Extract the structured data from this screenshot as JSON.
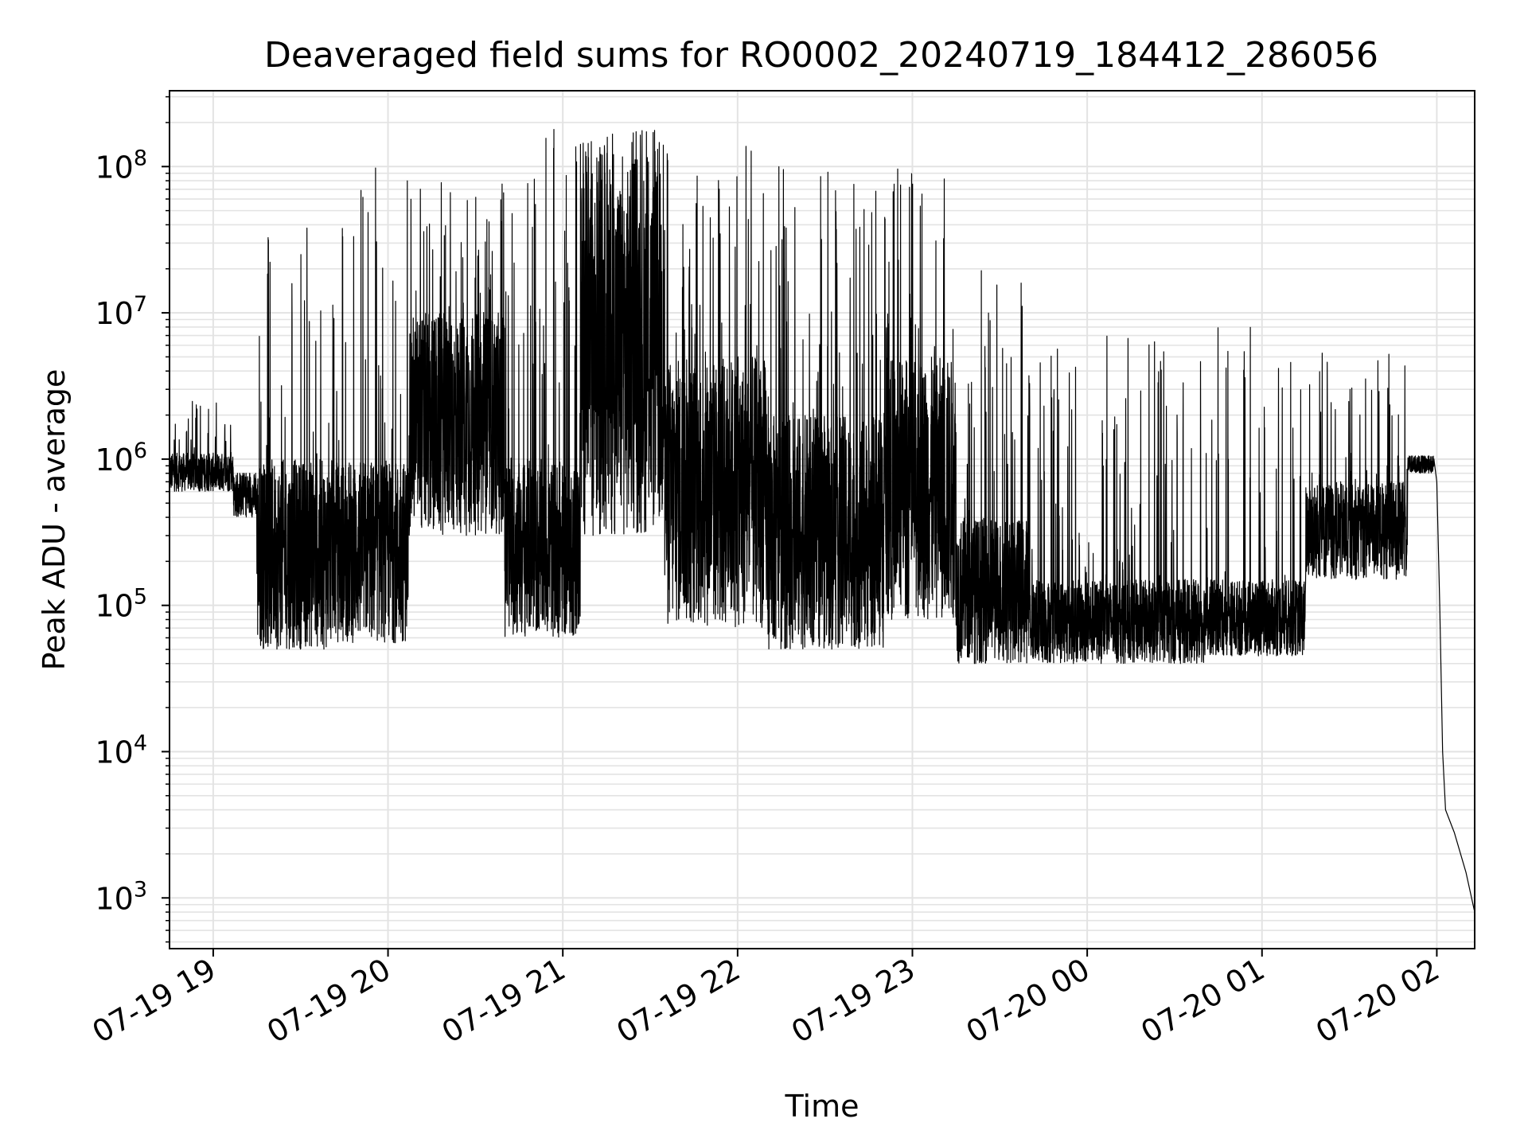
{
  "chart_data": {
    "type": "line",
    "title": "Deaveraged field sums for RO0002_20240719_184412_286056",
    "xlabel": "Time",
    "ylabel": "Peak ADU - average",
    "yscale": "log",
    "ylim": [
      450,
      330000000
    ],
    "xlim": [
      "2024-07-19 18:45",
      "2024-07-20 02:13"
    ],
    "grid": true,
    "line_color": "#000000",
    "x_ticks": [
      {
        "t": "2024-07-19 19:00",
        "label": "07-19 19"
      },
      {
        "t": "2024-07-19 20:00",
        "label": "07-19 20"
      },
      {
        "t": "2024-07-19 21:00",
        "label": "07-19 21"
      },
      {
        "t": "2024-07-19 22:00",
        "label": "07-19 22"
      },
      {
        "t": "2024-07-19 23:00",
        "label": "07-19 23"
      },
      {
        "t": "2024-07-20 00:00",
        "label": "07-20 00"
      },
      {
        "t": "2024-07-20 01:00",
        "label": "07-20 01"
      },
      {
        "t": "2024-07-20 02:00",
        "label": "07-20 02"
      }
    ],
    "y_ticks": [
      {
        "value": 1000,
        "base": "10",
        "exp": "3"
      },
      {
        "value": 10000,
        "base": "10",
        "exp": "4"
      },
      {
        "value": 100000,
        "base": "10",
        "exp": "5"
      },
      {
        "value": 1000000,
        "base": "10",
        "exp": "6"
      },
      {
        "value": 10000000,
        "base": "10",
        "exp": "7"
      },
      {
        "value": 100000000,
        "base": "10",
        "exp": "8"
      }
    ],
    "series": [
      {
        "segments": [
          {
            "start": "2024-07-19 18:45",
            "end": "2024-07-19 19:07",
            "lo": 600000,
            "hi": 1100000,
            "spike_max": 2500000
          },
          {
            "start": "2024-07-19 19:07",
            "end": "2024-07-19 19:15",
            "lo": 400000,
            "hi": 800000,
            "spike_max": 800000
          },
          {
            "start": "2024-07-19 19:15",
            "end": "2024-07-19 19:40",
            "lo": 50000,
            "hi": 1000000,
            "spike_max": 40000000
          },
          {
            "start": "2024-07-19 19:40",
            "end": "2024-07-19 20:07",
            "lo": 55000,
            "hi": 1000000,
            "spike_max": 120000000
          },
          {
            "start": "2024-07-19 20:07",
            "end": "2024-07-19 20:40",
            "lo": 300000,
            "hi": 10000000,
            "spike_max": 80000000
          },
          {
            "start": "2024-07-19 20:40",
            "end": "2024-07-19 21:06",
            "lo": 60000,
            "hi": 1000000,
            "spike_max": 180000000
          },
          {
            "start": "2024-07-19 21:06",
            "end": "2024-07-19 21:35",
            "lo": 300000,
            "hi": 100000000,
            "spike_max": 180000000
          },
          {
            "start": "2024-07-19 21:35",
            "end": "2024-07-19 22:10",
            "lo": 70000,
            "hi": 5000000,
            "spike_max": 160000000
          },
          {
            "start": "2024-07-19 22:10",
            "end": "2024-07-19 22:50",
            "lo": 50000,
            "hi": 2000000,
            "spike_max": 100000000
          },
          {
            "start": "2024-07-19 22:50",
            "end": "2024-07-19 23:15",
            "lo": 80000,
            "hi": 5000000,
            "spike_max": 100000000
          },
          {
            "start": "2024-07-19 23:15",
            "end": "2024-07-19 23:40",
            "lo": 40000,
            "hi": 400000,
            "spike_max": 20000000
          },
          {
            "start": "2024-07-19 23:40",
            "end": "2024-07-20 00:40",
            "lo": 40000,
            "hi": 150000,
            "spike_max": 7000000
          },
          {
            "start": "2024-07-20 00:40",
            "end": "2024-07-20 01:15",
            "lo": 45000,
            "hi": 150000,
            "spike_max": 8000000
          },
          {
            "start": "2024-07-20 01:15",
            "end": "2024-07-20 01:50",
            "lo": 150000,
            "hi": 700000,
            "spike_max": 6000000
          },
          {
            "start": "2024-07-20 01:50",
            "end": "2024-07-20 01:59",
            "lo": 800000,
            "hi": 1050000,
            "spike_max": 1050000
          }
        ],
        "decay": [
          {
            "t": "2024-07-20 01:59",
            "y": 1000000
          },
          {
            "t": "2024-07-20 02:00",
            "y": 700000
          },
          {
            "t": "2024-07-20 02:01",
            "y": 100000
          },
          {
            "t": "2024-07-20 02:02",
            "y": 10000
          },
          {
            "t": "2024-07-20 02:03",
            "y": 4000
          },
          {
            "t": "2024-07-20 02:06",
            "y": 2800
          },
          {
            "t": "2024-07-20 02:10",
            "y": 1500
          },
          {
            "t": "2024-07-20 02:13",
            "y": 800
          }
        ]
      }
    ]
  }
}
